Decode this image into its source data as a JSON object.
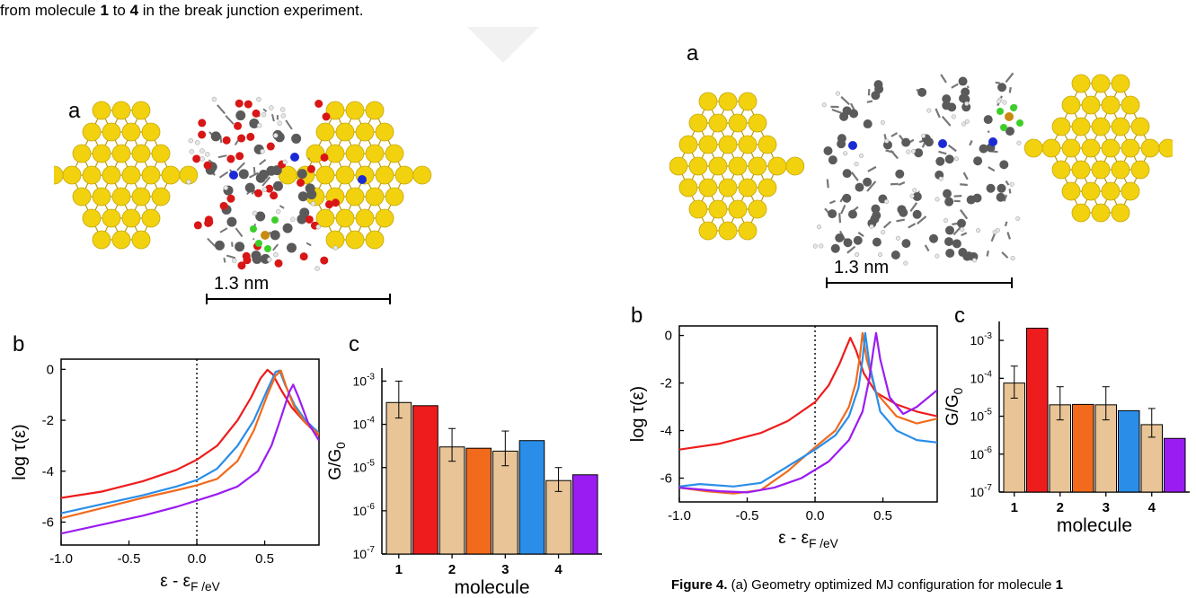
{
  "header_text": {
    "line_start": "from molecule ",
    "mol_a": "1",
    "line_mid": " to ",
    "mol_b": "4",
    "line_end": " in the break junction experiment."
  },
  "left_figure": {
    "panel_a": "a",
    "panel_b": "b",
    "panel_c": "c",
    "scale_label": "1.3 nm"
  },
  "right_figure": {
    "panel_a": "a",
    "panel_b": "b",
    "panel_c": "c",
    "scale_label": "1.3 nm"
  },
  "caption": {
    "figure_label": "Figure 4.",
    "text": " (a) Geometry optimized MJ configuration for molecule ",
    "mol": "1"
  },
  "colors": {
    "red": "#ee1c1c",
    "orange": "#f26a1b",
    "blue": "#2a8ee8",
    "purple": "#9b1cf2",
    "tan": "#e8c496",
    "gold": "#f2d20f",
    "carbon": "#5a5a5a",
    "oxygen": "#d81616",
    "nitrogen": "#1a2bd6",
    "fluorine": "#3ccf2a",
    "boron": "#c98a10"
  },
  "chart_data": [
    {
      "id": "left-b",
      "type": "line",
      "xlabel": "ε - ε_F /eV",
      "ylabel": "log τ(ε)",
      "xlim": [
        -1.0,
        0.9
      ],
      "ylim": [
        -6.9,
        0.4
      ],
      "xticks": [
        -1.0,
        -0.5,
        0.0,
        0.5
      ],
      "xtick_labels": [
        "-1.0",
        "-0.5",
        "0.0",
        "0.5"
      ],
      "yticks": [
        0,
        -2,
        -4,
        -6
      ],
      "ytick_labels": [
        "0",
        "-2",
        "-4",
        "-6"
      ],
      "vline": 0.0,
      "series": [
        {
          "color": "red",
          "x": [
            -1.0,
            -0.7,
            -0.4,
            -0.15,
            0.0,
            0.15,
            0.3,
            0.4,
            0.47,
            0.52,
            0.56,
            0.62,
            0.7,
            0.8,
            0.9
          ],
          "y": [
            -5.05,
            -4.8,
            -4.4,
            -3.95,
            -3.55,
            -3.0,
            -2.0,
            -1.1,
            -0.35,
            -0.02,
            -0.2,
            -0.8,
            -1.5,
            -2.1,
            -2.6
          ]
        },
        {
          "color": "blue",
          "x": [
            -1.0,
            -0.7,
            -0.4,
            -0.15,
            0.0,
            0.15,
            0.3,
            0.42,
            0.52,
            0.58,
            0.61,
            0.65,
            0.72,
            0.8,
            0.9
          ],
          "y": [
            -5.65,
            -5.3,
            -4.95,
            -4.6,
            -4.35,
            -3.9,
            -3.0,
            -2.0,
            -0.8,
            -0.1,
            -0.05,
            -0.6,
            -1.4,
            -2.0,
            -2.5
          ]
        },
        {
          "color": "orange",
          "x": [
            -1.0,
            -0.7,
            -0.4,
            -0.15,
            0.0,
            0.15,
            0.3,
            0.42,
            0.52,
            0.58,
            0.62,
            0.66,
            0.72,
            0.8,
            0.9
          ],
          "y": [
            -5.85,
            -5.45,
            -5.05,
            -4.75,
            -4.55,
            -4.3,
            -3.6,
            -2.4,
            -1.0,
            -0.25,
            -0.05,
            -0.7,
            -1.5,
            -2.1,
            -2.55
          ]
        },
        {
          "color": "purple",
          "x": [
            -1.0,
            -0.7,
            -0.4,
            -0.15,
            0.0,
            0.15,
            0.3,
            0.45,
            0.55,
            0.62,
            0.68,
            0.71,
            0.75,
            0.82,
            0.9
          ],
          "y": [
            -6.45,
            -6.1,
            -5.75,
            -5.4,
            -5.15,
            -4.9,
            -4.6,
            -4.0,
            -3.0,
            -1.9,
            -0.9,
            -0.6,
            -1.1,
            -2.1,
            -2.8
          ]
        }
      ]
    },
    {
      "id": "left-c",
      "type": "bar",
      "xlabel": "molecule",
      "ylabel": "G/G_0",
      "scale": "log",
      "ylim_exp": [
        -7,
        -2.7
      ],
      "ytick_exps": [
        -3,
        -4,
        -5,
        -6,
        -7
      ],
      "categories": [
        "1",
        "2",
        "3",
        "4"
      ],
      "bars": [
        {
          "group": 0,
          "color": "tan",
          "value": 0.00032,
          "err_lo": 0.00014,
          "err_hi": 0.001
        },
        {
          "group": 0,
          "color": "red",
          "value": 0.00027
        },
        {
          "group": 1,
          "color": "tan",
          "value": 3e-05,
          "err_lo": 1.4e-05,
          "err_hi": 8e-05
        },
        {
          "group": 1,
          "color": "orange",
          "value": 2.8e-05
        },
        {
          "group": 2,
          "color": "tan",
          "value": 2.4e-05,
          "err_lo": 1.1e-05,
          "err_hi": 7e-05
        },
        {
          "group": 2,
          "color": "blue",
          "value": 4.2e-05
        },
        {
          "group": 3,
          "color": "tan",
          "value": 5e-06,
          "err_lo": 2.8e-06,
          "err_hi": 1e-05
        },
        {
          "group": 3,
          "color": "purple",
          "value": 6.8e-06
        }
      ]
    },
    {
      "id": "right-b",
      "type": "line",
      "xlabel": "ε - ε_F /eV",
      "ylabel": "log τ(ε)",
      "xlim": [
        -1.0,
        0.9
      ],
      "ylim": [
        -7.0,
        0.4
      ],
      "xticks": [
        -1.0,
        -0.5,
        0.0,
        0.5
      ],
      "xtick_labels": [
        "-1.0",
        "-0.5",
        "0.0",
        "0.5"
      ],
      "yticks": [
        0,
        -2,
        -4,
        -6
      ],
      "ytick_labels": [
        "0",
        "-2",
        "-4",
        "-6"
      ],
      "vline": 0.0,
      "series": [
        {
          "color": "red",
          "x": [
            -1.0,
            -0.7,
            -0.4,
            -0.2,
            0.0,
            0.1,
            0.18,
            0.23,
            0.26,
            0.3,
            0.36,
            0.45,
            0.6,
            0.75,
            0.9
          ],
          "y": [
            -4.8,
            -4.55,
            -4.1,
            -3.6,
            -2.8,
            -2.1,
            -1.2,
            -0.5,
            -0.1,
            -0.6,
            -1.6,
            -2.4,
            -2.9,
            -3.2,
            -3.4
          ]
        },
        {
          "color": "orange",
          "x": [
            -1.0,
            -0.8,
            -0.6,
            -0.4,
            -0.2,
            0.0,
            0.15,
            0.25,
            0.3,
            0.33,
            0.35,
            0.38,
            0.45,
            0.6,
            0.75,
            0.9
          ],
          "y": [
            -6.4,
            -6.55,
            -6.65,
            -6.5,
            -5.7,
            -4.7,
            -4.0,
            -3.0,
            -2.0,
            -0.9,
            0.1,
            -1.0,
            -2.4,
            -3.4,
            -3.7,
            -3.5
          ]
        },
        {
          "color": "blue",
          "x": [
            -1.0,
            -0.85,
            -0.6,
            -0.4,
            -0.2,
            0.0,
            0.15,
            0.25,
            0.32,
            0.35,
            0.37,
            0.4,
            0.48,
            0.6,
            0.75,
            0.9
          ],
          "y": [
            -6.35,
            -6.25,
            -6.35,
            -6.2,
            -5.5,
            -4.8,
            -4.2,
            -3.4,
            -2.2,
            -1.0,
            0.1,
            -1.2,
            -3.2,
            -4.0,
            -4.4,
            -4.5
          ]
        },
        {
          "color": "purple",
          "x": [
            -1.0,
            -0.7,
            -0.5,
            -0.3,
            -0.1,
            0.1,
            0.25,
            0.35,
            0.4,
            0.43,
            0.45,
            0.48,
            0.55,
            0.65,
            0.75,
            0.9
          ],
          "y": [
            -6.4,
            -6.55,
            -6.6,
            -6.4,
            -6.0,
            -5.3,
            -4.4,
            -3.2,
            -1.8,
            -0.6,
            0.1,
            -1.0,
            -2.6,
            -3.3,
            -3.0,
            -2.3
          ]
        }
      ]
    },
    {
      "id": "right-c",
      "type": "bar",
      "xlabel": "molecule",
      "ylabel": "G/G_0",
      "scale": "log",
      "ylim_exp": [
        -7,
        -2.5
      ],
      "ytick_exps": [
        -3,
        -4,
        -5,
        -6,
        -7
      ],
      "categories": [
        "1",
        "2",
        "3",
        "4"
      ],
      "bars": [
        {
          "group": 0,
          "color": "tan",
          "value": 7.5e-05,
          "err_lo": 3e-05,
          "err_hi": 0.00021
        },
        {
          "group": 0,
          "color": "red",
          "value": 0.0021
        },
        {
          "group": 1,
          "color": "tan",
          "value": 2e-05,
          "err_lo": 8e-06,
          "err_hi": 6e-05
        },
        {
          "group": 1,
          "color": "orange",
          "value": 2.05e-05
        },
        {
          "group": 2,
          "color": "tan",
          "value": 2e-05,
          "err_lo": 8e-06,
          "err_hi": 6e-05
        },
        {
          "group": 2,
          "color": "blue",
          "value": 1.4e-05
        },
        {
          "group": 3,
          "color": "tan",
          "value": 6e-06,
          "err_lo": 2.8e-06,
          "err_hi": 1.6e-05
        },
        {
          "group": 3,
          "color": "purple",
          "value": 2.6e-06
        }
      ]
    }
  ]
}
